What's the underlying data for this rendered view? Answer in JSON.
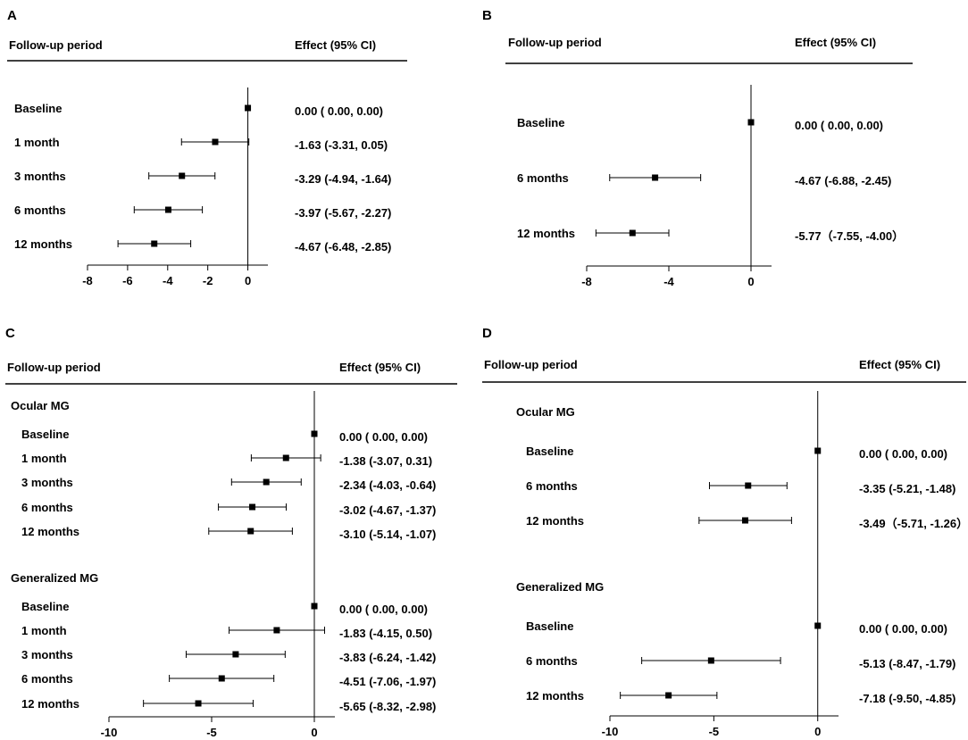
{
  "figure": {
    "background": "#ffffff",
    "ink": "#000000"
  },
  "chart_data": [
    {
      "type": "forest",
      "panel": "A",
      "header_left": "Follow-up period",
      "header_right": "Effect (95% CI)",
      "xlim": [
        -8,
        1
      ],
      "xticks": [
        -8,
        -6,
        -4,
        -2,
        0
      ],
      "reference_line": 0,
      "groups": [
        {
          "title": null,
          "rows": [
            {
              "label": "Baseline",
              "est": 0.0,
              "lo": 0.0,
              "hi": 0.0,
              "text": "0.00 ( 0.00,  0.00)"
            },
            {
              "label": "1 month",
              "est": -1.63,
              "lo": -3.31,
              "hi": 0.05,
              "text": "-1.63 (-3.31,  0.05)"
            },
            {
              "label": "3 months",
              "est": -3.29,
              "lo": -4.94,
              "hi": -1.64,
              "text": "-3.29 (-4.94, -1.64)"
            },
            {
              "label": "6 months",
              "est": -3.97,
              "lo": -5.67,
              "hi": -2.27,
              "text": "-3.97 (-5.67, -2.27)"
            },
            {
              "label": "12 months",
              "est": -4.67,
              "lo": -6.48,
              "hi": -2.85,
              "text": "-4.67 (-6.48, -2.85)"
            }
          ]
        }
      ]
    },
    {
      "type": "forest",
      "panel": "B",
      "header_left": "Follow-up period",
      "header_right": "Effect (95% CI)",
      "xlim": [
        -8,
        1
      ],
      "xticks": [
        -8,
        -4,
        0
      ],
      "reference_line": 0,
      "groups": [
        {
          "title": null,
          "rows": [
            {
              "label": "Baseline",
              "est": 0.0,
              "lo": 0.0,
              "hi": 0.0,
              "text": "0.00 ( 0.00,  0.00)"
            },
            {
              "label": "6 months",
              "est": -4.67,
              "lo": -6.88,
              "hi": -2.45,
              "text": "-4.67 (-6.88, -2.45)"
            },
            {
              "label": "12 months",
              "est": -5.77,
              "lo": -7.55,
              "hi": -4.0,
              "text": "-5.77（-7.55, -4.00）"
            }
          ]
        }
      ]
    },
    {
      "type": "forest",
      "panel": "C",
      "header_left": "Follow-up period",
      "header_right": "Effect (95% CI)",
      "xlim": [
        -10,
        1
      ],
      "xticks": [
        -10,
        -5,
        0
      ],
      "reference_line": 0,
      "groups": [
        {
          "title": "Ocular MG",
          "rows": [
            {
              "label": "Baseline",
              "est": 0.0,
              "lo": 0.0,
              "hi": 0.0,
              "text": "0.00 ( 0.00,  0.00)"
            },
            {
              "label": "1 month",
              "est": -1.38,
              "lo": -3.07,
              "hi": 0.31,
              "text": "-1.38 (-3.07,  0.31)"
            },
            {
              "label": "3 months",
              "est": -2.34,
              "lo": -4.03,
              "hi": -0.64,
              "text": "-2.34 (-4.03, -0.64)"
            },
            {
              "label": "6 months",
              "est": -3.02,
              "lo": -4.67,
              "hi": -1.37,
              "text": "-3.02 (-4.67, -1.37)"
            },
            {
              "label": "12 months",
              "est": -3.1,
              "lo": -5.14,
              "hi": -1.07,
              "text": "-3.10 (-5.14, -1.07)"
            }
          ]
        },
        {
          "title": "Generalized MG",
          "rows": [
            {
              "label": "Baseline",
              "est": 0.0,
              "lo": 0.0,
              "hi": 0.0,
              "text": "0.00 ( 0.00,  0.00)"
            },
            {
              "label": "1 month",
              "est": -1.83,
              "lo": -4.15,
              "hi": 0.5,
              "text": "-1.83 (-4.15,  0.50)"
            },
            {
              "label": "3 months",
              "est": -3.83,
              "lo": -6.24,
              "hi": -1.42,
              "text": "-3.83 (-6.24, -1.42)"
            },
            {
              "label": "6 months",
              "est": -4.51,
              "lo": -7.06,
              "hi": -1.97,
              "text": "-4.51 (-7.06, -1.97)"
            },
            {
              "label": "12 months",
              "est": -5.65,
              "lo": -8.32,
              "hi": -2.98,
              "text": "-5.65 (-8.32, -2.98)"
            }
          ]
        }
      ]
    },
    {
      "type": "forest",
      "panel": "D",
      "header_left": "Follow-up period",
      "header_right": "Effect (95% CI)",
      "xlim": [
        -10,
        1
      ],
      "xticks": [
        -10,
        -5,
        0
      ],
      "reference_line": 0,
      "groups": [
        {
          "title": "Ocular MG",
          "rows": [
            {
              "label": "Baseline",
              "est": 0.0,
              "lo": 0.0,
              "hi": 0.0,
              "text": "0.00 ( 0.00,  0.00)"
            },
            {
              "label": "6 months",
              "est": -3.35,
              "lo": -5.21,
              "hi": -1.48,
              "text": "-3.35 (-5.21, -1.48)"
            },
            {
              "label": "12 months",
              "est": -3.49,
              "lo": -5.71,
              "hi": -1.26,
              "text": "-3.49（-5.71, -1.26）"
            }
          ]
        },
        {
          "title": "Generalized MG",
          "rows": [
            {
              "label": "Baseline",
              "est": 0.0,
              "lo": 0.0,
              "hi": 0.0,
              "text": "0.00 ( 0.00,  0.00)"
            },
            {
              "label": "6 months",
              "est": -5.13,
              "lo": -8.47,
              "hi": -1.79,
              "text": "-5.13 (-8.47, -1.79)"
            },
            {
              "label": "12 months",
              "est": -7.18,
              "lo": -9.5,
              "hi": -4.85,
              "text": "-7.18 (-9.50, -4.85)"
            }
          ]
        }
      ]
    }
  ]
}
